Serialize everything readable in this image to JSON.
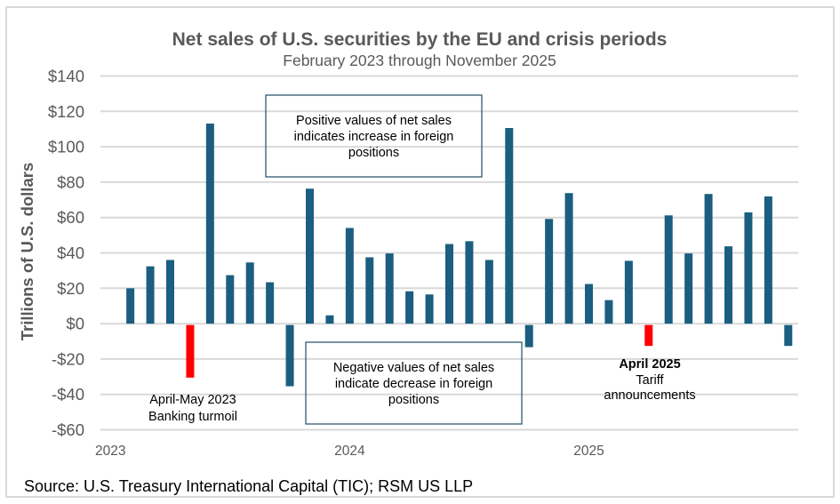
{
  "chart_data": {
    "type": "bar",
    "title": "Net sales of U.S. securities by the EU and crisis periods",
    "subtitle": "February 2023 through November 2025",
    "xlabel": "",
    "ylabel": "Trillions of U.S. dollars",
    "ylim": [
      -60,
      140
    ],
    "yticks": [
      140,
      120,
      100,
      80,
      60,
      40,
      20,
      0,
      -20,
      -40,
      -60
    ],
    "ytick_labels": [
      "$140",
      "$120",
      "$100",
      "$80",
      "$60",
      "$40",
      "$20",
      "$0",
      "-$20",
      "-$40",
      "-$60"
    ],
    "grid": true,
    "x_start_month": "2023-01",
    "year_labels": [
      {
        "label": "2023",
        "month_index": 0
      },
      {
        "label": "2024",
        "month_index": 12
      },
      {
        "label": "2025",
        "month_index": 24
      }
    ],
    "categories": [
      "2023-02",
      "2023-03",
      "2023-04",
      "2023-05",
      "2023-06",
      "2023-07",
      "2023-08",
      "2023-09",
      "2023-10",
      "2023-11",
      "2023-12",
      "2024-01",
      "2024-02",
      "2024-03",
      "2024-04",
      "2024-05",
      "2024-06",
      "2024-07",
      "2024-08",
      "2024-09",
      "2024-10",
      "2024-11",
      "2024-12",
      "2025-01",
      "2025-02",
      "2025-03",
      "2025-04",
      "2025-05",
      "2025-06",
      "2025-07",
      "2025-08",
      "2025-09",
      "2025-10",
      "2025-11"
    ],
    "values": [
      20.0,
      32.4,
      36.0,
      -30.5,
      113.1,
      27.4,
      34.6,
      23.4,
      -35.4,
      76.3,
      4.7,
      54.1,
      37.5,
      39.7,
      18.3,
      16.5,
      45.0,
      46.6,
      36.0,
      110.6,
      -13.3,
      59.2,
      73.8,
      22.4,
      13.3,
      35.5,
      -12.6,
      61.2,
      39.7,
      73.3,
      43.7,
      62.9,
      71.9,
      -12.6
    ],
    "highlighted": [
      "2023-05",
      "2025-04"
    ],
    "colors": {
      "bar": "#1b5e80",
      "highlight": "#ff0000",
      "grid": "#d9d9d9",
      "text": "#595959",
      "annotation_box": "#1f4e63"
    },
    "annotations": {
      "positive_box": [
        "Positive values of net sales",
        "indicates increase in foreign",
        "positions"
      ],
      "negative_box": [
        "Negative values of net sales",
        "indicate decrease in foreign",
        "positions"
      ],
      "banking": [
        "April-May 2023",
        "Banking turmoil"
      ],
      "tariff_bold": "April 2025",
      "tariff": [
        "Tariff",
        "announcements"
      ]
    },
    "source": "Source: U.S. Treasury International Capital (TIC); RSM US LLP"
  }
}
